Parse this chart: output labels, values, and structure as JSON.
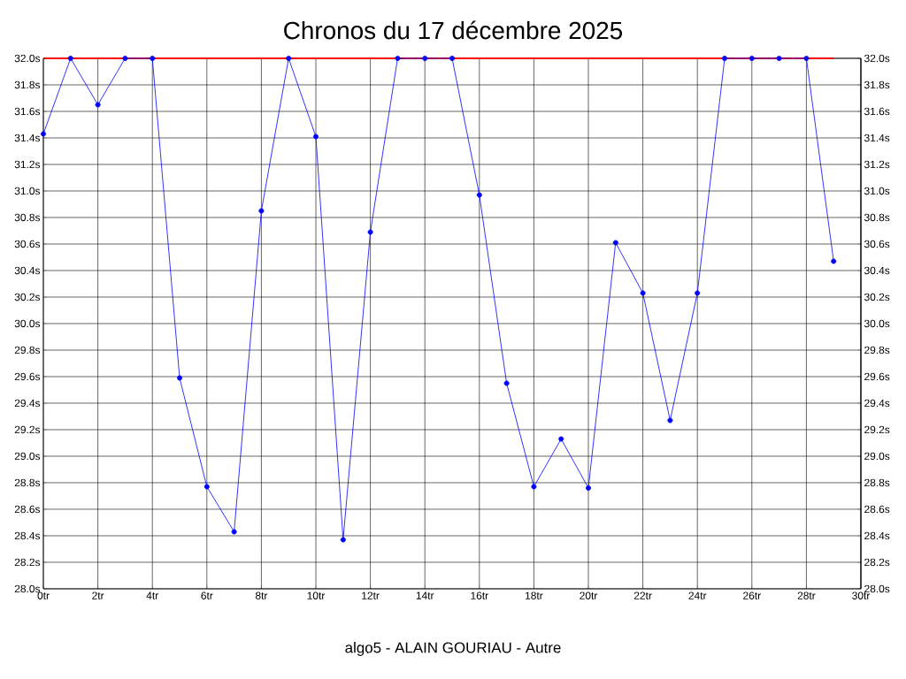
{
  "chart_data": {
    "type": "line",
    "title": "Chronos du 17 décembre 2025",
    "xlabel": "algo5 - ALAIN GOURIAU - Autre",
    "x": [
      0,
      1,
      2,
      3,
      4,
      5,
      6,
      7,
      8,
      9,
      10,
      11,
      12,
      13,
      14,
      15,
      16,
      17,
      18,
      19,
      20,
      21,
      22,
      23,
      24,
      25,
      26,
      27,
      28,
      29
    ],
    "series": [
      {
        "color": "#0000ff",
        "values": [
          31.43,
          32.0,
          31.65,
          32.0,
          32.0,
          29.59,
          28.77,
          28.43,
          30.85,
          32.0,
          31.41,
          28.37,
          30.69,
          32.0,
          32.0,
          32.0,
          30.97,
          29.55,
          28.77,
          29.13,
          28.76,
          30.61,
          30.23,
          29.27,
          30.23,
          32.0,
          32.0,
          32.0,
          32.0,
          30.47
        ]
      }
    ],
    "xlim": [
      0,
      30
    ],
    "xticks": [
      {
        "value": 0,
        "label": "0tr"
      },
      {
        "value": 2,
        "label": "2tr"
      },
      {
        "value": 4,
        "label": "4tr"
      },
      {
        "value": 6,
        "label": "6tr"
      },
      {
        "value": 8,
        "label": "8tr"
      },
      {
        "value": 10,
        "label": "10tr"
      },
      {
        "value": 12,
        "label": "12tr"
      },
      {
        "value": 14,
        "label": "14tr"
      },
      {
        "value": 16,
        "label": "16tr"
      },
      {
        "value": 18,
        "label": "18tr"
      },
      {
        "value": 20,
        "label": "20tr"
      },
      {
        "value": 22,
        "label": "22tr"
      },
      {
        "value": 24,
        "label": "24tr"
      },
      {
        "value": 26,
        "label": "26tr"
      },
      {
        "value": 28,
        "label": "28tr"
      },
      {
        "value": 30,
        "label": "30tr"
      }
    ],
    "ylim": [
      28,
      32
    ],
    "yticks": [
      {
        "value": 28.0,
        "label": "28.0s"
      },
      {
        "value": 28.2,
        "label": "28.2s"
      },
      {
        "value": 28.4,
        "label": "28.4s"
      },
      {
        "value": 28.6,
        "label": "28.6s"
      },
      {
        "value": 28.8,
        "label": "28.8s"
      },
      {
        "value": 29.0,
        "label": "29.0s"
      },
      {
        "value": 29.2,
        "label": "29.2s"
      },
      {
        "value": 29.4,
        "label": "29.4s"
      },
      {
        "value": 29.6,
        "label": "29.6s"
      },
      {
        "value": 29.8,
        "label": "29.8s"
      },
      {
        "value": 30.0,
        "label": "30.0s"
      },
      {
        "value": 30.2,
        "label": "30.2s"
      },
      {
        "value": 30.4,
        "label": "30.4s"
      },
      {
        "value": 30.6,
        "label": "30.6s"
      },
      {
        "value": 30.8,
        "label": "30.8s"
      },
      {
        "value": 31.0,
        "label": "31.0s"
      },
      {
        "value": 31.2,
        "label": "31.2s"
      },
      {
        "value": 31.4,
        "label": "31.4s"
      },
      {
        "value": 31.6,
        "label": "31.6s"
      },
      {
        "value": 31.8,
        "label": "31.8s"
      },
      {
        "value": 32.0,
        "label": "32.0s"
      }
    ],
    "y2lim": [
      28,
      32
    ],
    "y2ticks": [
      {
        "value": 28.0,
        "label": "28.0s"
      },
      {
        "value": 28.2,
        "label": "28.2s"
      },
      {
        "value": 28.4,
        "label": "28.4s"
      },
      {
        "value": 28.6,
        "label": "28.6s"
      },
      {
        "value": 28.8,
        "label": "28.8s"
      },
      {
        "value": 29.0,
        "label": "29.0s"
      },
      {
        "value": 29.2,
        "label": "29.2s"
      },
      {
        "value": 29.4,
        "label": "29.4s"
      },
      {
        "value": 29.6,
        "label": "29.6s"
      },
      {
        "value": 29.8,
        "label": "29.8s"
      },
      {
        "value": 30.0,
        "label": "30.0s"
      },
      {
        "value": 30.2,
        "label": "30.2s"
      },
      {
        "value": 30.4,
        "label": "30.4s"
      },
      {
        "value": 30.6,
        "label": "30.6s"
      },
      {
        "value": 30.8,
        "label": "30.8s"
      },
      {
        "value": 31.0,
        "label": "31.0s"
      },
      {
        "value": 31.2,
        "label": "31.2s"
      },
      {
        "value": 31.4,
        "label": "31.4s"
      },
      {
        "value": 31.6,
        "label": "31.6s"
      },
      {
        "value": 31.8,
        "label": "31.8s"
      },
      {
        "value": 32.0,
        "label": "32.0s"
      }
    ],
    "ref_lines": [
      {
        "axis": "y",
        "value": 32.0,
        "color": "#ff0000"
      }
    ],
    "grid": true,
    "marker": "circle",
    "line_style": "solid"
  }
}
